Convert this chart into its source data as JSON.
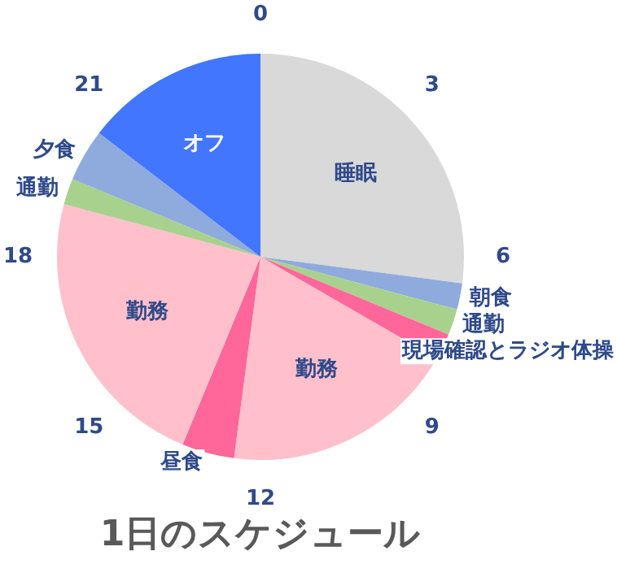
{
  "chart_data": {
    "type": "pie",
    "title": "1日のスケジュール",
    "categories": [
      "睡眠",
      "朝食",
      "通勤",
      "現場確認とラジオ体操",
      "勤務",
      "昼食",
      "勤務",
      "通勤",
      "夕食",
      "オフ"
    ],
    "values": [
      27.09,
      2.08,
      2.08,
      2.08,
      18.75,
      4.17,
      22.92,
      2.08,
      4.17,
      14.58
    ],
    "colors": [
      "#d9d9d9",
      "#8faadc",
      "#a9d18e",
      "#ff6699",
      "#ffc0cb",
      "#ff6699",
      "#ffc0cb",
      "#a9d18e",
      "#8faadc",
      "#4276ff"
    ],
    "annotations": [
      "0",
      "3",
      "6",
      "9",
      "12",
      "15",
      "18",
      "21"
    ],
    "legend": false
  }
}
